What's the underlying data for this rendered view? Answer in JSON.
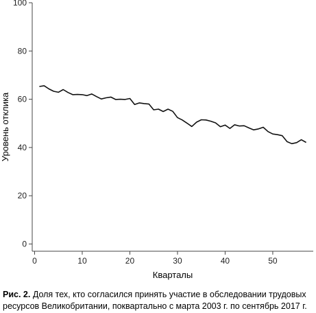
{
  "chart_data": {
    "type": "line",
    "title": "",
    "xlabel": "Кварталы",
    "ylabel": "Уровень отклика",
    "xlim": [
      -0.5,
      58.5
    ],
    "ylim": [
      -3,
      100
    ],
    "x_ticks": [
      0,
      10,
      20,
      30,
      40,
      50
    ],
    "y_ticks": [
      0,
      20,
      40,
      60,
      80,
      100
    ],
    "grid": false,
    "series": [
      {
        "x": [
          1,
          2,
          3,
          4,
          5,
          6,
          7,
          8,
          9,
          10,
          11,
          12,
          13,
          14,
          15,
          16,
          17,
          18,
          19,
          20,
          21,
          22,
          23,
          24,
          25,
          26,
          27,
          28,
          29,
          30,
          31,
          32,
          33,
          34,
          35,
          36,
          37,
          38,
          39,
          40,
          41,
          42,
          43,
          44,
          45,
          46,
          47,
          48,
          49,
          50,
          51,
          52,
          53,
          54,
          55,
          56,
          57
        ],
        "values": [
          65.3,
          65.6,
          64.3,
          63.3,
          62.9,
          64.0,
          62.8,
          61.9,
          62.0,
          61.9,
          61.5,
          62.2,
          61.1,
          60.1,
          60.6,
          60.9,
          59.9,
          60.0,
          59.9,
          60.3,
          57.8,
          58.5,
          58.2,
          58.0,
          55.6,
          55.9,
          54.9,
          55.9,
          55.0,
          52.4,
          51.4,
          50.1,
          48.7,
          50.5,
          51.5,
          51.4,
          50.9,
          50.2,
          48.6,
          49.3,
          47.9,
          49.4,
          48.9,
          49.0,
          48.1,
          47.3,
          47.7,
          48.4,
          46.6,
          45.6,
          45.3,
          44.9,
          42.4,
          41.6,
          42.0,
          43.2,
          42.1
        ]
      }
    ]
  },
  "caption": {
    "label": "Рис. 2.",
    "text": " Доля тех, кто согласился принять участие в обследовании трудовых ресурсов Великобритании, поквартально с марта 2003 г. по сентябрь 2017 г."
  },
  "colors": {
    "line": "#111111",
    "axis": "#444444"
  }
}
